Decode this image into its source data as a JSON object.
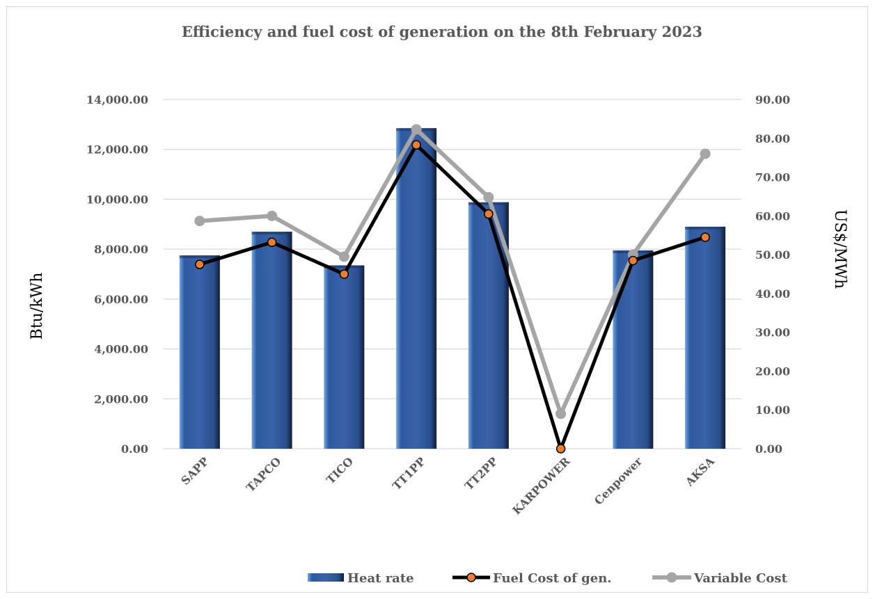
{
  "chart_data": {
    "type": "bar",
    "title": "Efficiency and fuel cost of generation on the 8th February 2023",
    "categories": [
      "SAPP",
      "TAPCO",
      "TICO",
      "TT1PP",
      "TT2PP",
      "KARPOWER",
      "Cenpower",
      "AKSA"
    ],
    "ylabel": "Btu/kWh",
    "y2label": "US$/MWh",
    "ylim": [
      0,
      14000
    ],
    "y2lim": [
      0,
      90
    ],
    "yticks": [
      "0.00",
      "2,000.00",
      "4,000.00",
      "6,000.00",
      "8,000.00",
      "10,000.00",
      "12,000.00",
      "14,000.00"
    ],
    "y2ticks": [
      "0.00",
      "10.00",
      "20.00",
      "30.00",
      "40.00",
      "50.00",
      "60.00",
      "70.00",
      "80.00",
      "90.00"
    ],
    "grid": true,
    "legend_position": "bottom",
    "series": [
      {
        "name": "Heat rate",
        "type": "bar",
        "axis": "left",
        "color": "#3a62a8",
        "values": [
          7750,
          8700,
          7350,
          12850,
          9880,
          0,
          7950,
          8900
        ]
      },
      {
        "name": "Fuel Cost of gen.",
        "type": "line",
        "axis": "right",
        "color": "#000000",
        "marker_color": "#ed7d31",
        "values": [
          47.5,
          53.2,
          45.0,
          78.3,
          60.5,
          0.0,
          48.5,
          54.5
        ]
      },
      {
        "name": "Variable Cost",
        "type": "line",
        "axis": "right",
        "color": "#a5a5a5",
        "values": [
          58.7,
          60.0,
          49.5,
          82.3,
          64.8,
          9.0,
          50.0,
          76.0
        ]
      }
    ]
  }
}
